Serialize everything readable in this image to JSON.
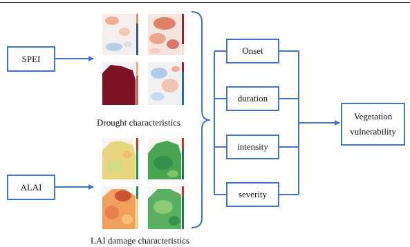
{
  "inputs": {
    "spei": "SPEI",
    "alai": "ALAI"
  },
  "captions": {
    "drought": "Drought characteristics",
    "lai": "LAI damage characteristics"
  },
  "characteristics": [
    "Onset",
    "duration",
    "intensity",
    "severity"
  ],
  "output": {
    "line1": "Vegetation",
    "line2": "vulnerability"
  },
  "colors": {
    "box_border": "#4472c4",
    "arrow": "#4472c4"
  }
}
